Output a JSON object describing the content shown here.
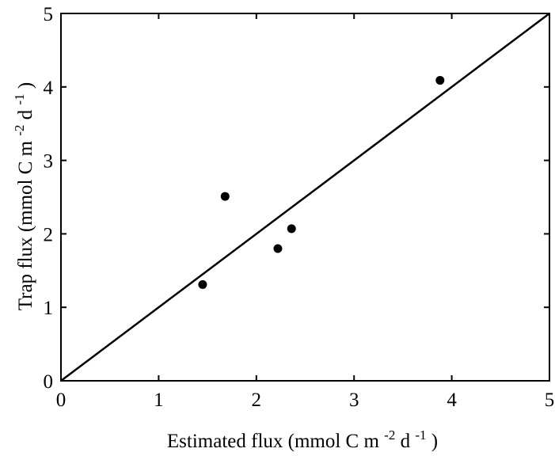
{
  "chart_data": {
    "type": "scatter",
    "title": "",
    "xlabel": {
      "main": "Estimated flux (mmol C m",
      "exp1": "-2",
      "mid": " d",
      "exp2": "-1",
      "end": ")"
    },
    "ylabel": {
      "main": "Trap flux (mmol C m",
      "exp1": "-2",
      "mid": " d",
      "exp2": "-1",
      "end": ")"
    },
    "xlim": [
      0,
      5
    ],
    "ylim": [
      0,
      5
    ],
    "xticks": [
      "0",
      "1",
      "2",
      "3",
      "4",
      "5"
    ],
    "yticks": [
      "0",
      "1",
      "2",
      "3",
      "4",
      "5"
    ],
    "grid": false,
    "legend": "none",
    "points": [
      {
        "x": 1.45,
        "y": 1.31
      },
      {
        "x": 1.68,
        "y": 2.51
      },
      {
        "x": 2.22,
        "y": 1.8
      },
      {
        "x": 2.36,
        "y": 2.07
      },
      {
        "x": 3.88,
        "y": 4.09
      }
    ],
    "reference_line": {
      "x": [
        0,
        5
      ],
      "y": [
        0,
        5
      ]
    },
    "colors": {
      "marker": "#000000",
      "line": "#000000",
      "axis": "#000000"
    }
  }
}
